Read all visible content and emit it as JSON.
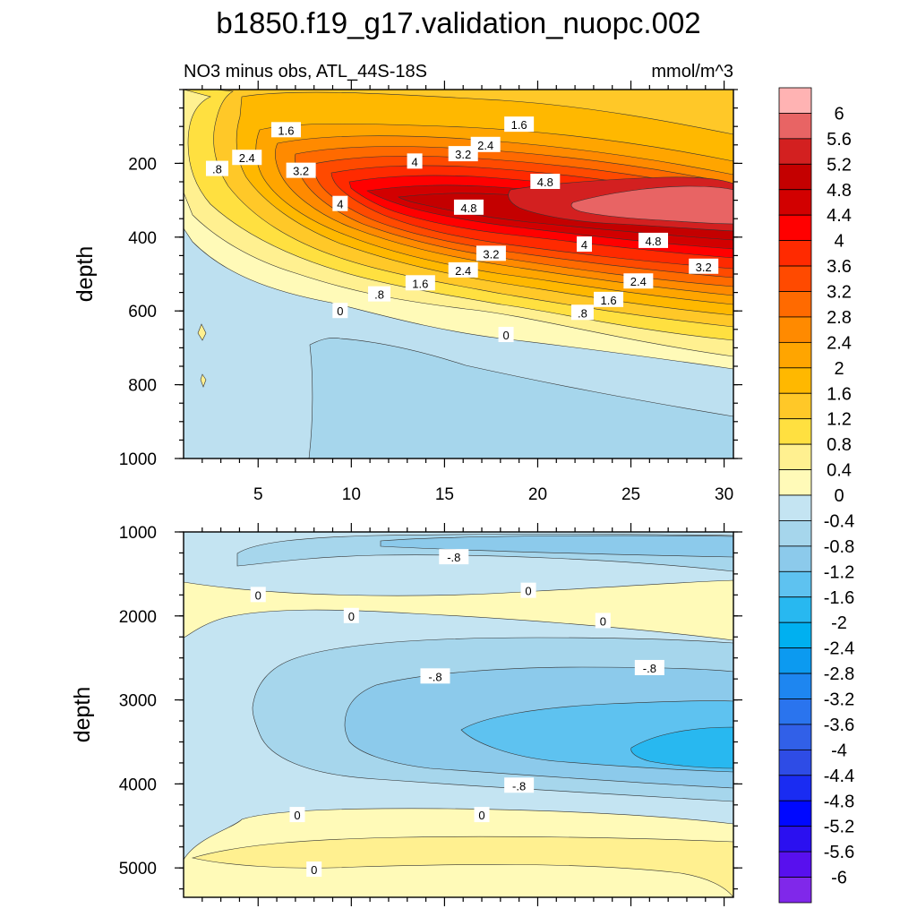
{
  "title": "b1850.f19_g17.validation_nuopc.002",
  "subtitle": "NO3 minus obs, ATL_44S-18S",
  "units": "mmol/m^3",
  "chart_data": [
    {
      "type": "heatmap",
      "panel": "upper",
      "ylabel": "depth",
      "xlabel": "",
      "xlim": [
        1,
        30.5
      ],
      "ylim": [
        1000,
        0
      ],
      "xticks": [
        "5",
        "10",
        "15",
        "20",
        "25",
        "30"
      ],
      "yticks": [
        "200",
        "400",
        "600",
        "800",
        "1000"
      ],
      "contour_labels": [
        {
          "x": 6.5,
          "y": 110,
          "text": "1.6"
        },
        {
          "x": 19,
          "y": 95,
          "text": "1.6"
        },
        {
          "x": 17.2,
          "y": 150,
          "text": "2.4"
        },
        {
          "x": 4.4,
          "y": 185,
          "text": "2.4"
        },
        {
          "x": 16,
          "y": 175,
          "text": "3.2"
        },
        {
          "x": 13.4,
          "y": 195,
          "text": "4"
        },
        {
          "x": 7.3,
          "y": 220,
          "text": "3.2"
        },
        {
          "x": 2.8,
          "y": 215,
          "text": ".8"
        },
        {
          "x": 20.4,
          "y": 250,
          "text": "4.8"
        },
        {
          "x": 9.4,
          "y": 310,
          "text": "4"
        },
        {
          "x": 16.3,
          "y": 320,
          "text": "4.8"
        },
        {
          "x": 26.2,
          "y": 410,
          "text": "4.8"
        },
        {
          "x": 22.5,
          "y": 420,
          "text": "4"
        },
        {
          "x": 17.5,
          "y": 445,
          "text": "3.2"
        },
        {
          "x": 28.9,
          "y": 480,
          "text": "3.2"
        },
        {
          "x": 16,
          "y": 490,
          "text": "2.4"
        },
        {
          "x": 13.7,
          "y": 525,
          "text": "1.6"
        },
        {
          "x": 25.4,
          "y": 520,
          "text": "2.4"
        },
        {
          "x": 11.5,
          "y": 555,
          "text": ".8"
        },
        {
          "x": 23.8,
          "y": 570,
          "text": "1.6"
        },
        {
          "x": 9.4,
          "y": 600,
          "text": "0"
        },
        {
          "x": 22.4,
          "y": 605,
          "text": ".8"
        },
        {
          "x": 18.3,
          "y": 665,
          "text": "0"
        }
      ]
    },
    {
      "type": "heatmap",
      "panel": "lower",
      "ylabel": "depth",
      "xlabel": "",
      "xlim": [
        1,
        30.5
      ],
      "ylim": [
        5350,
        1000
      ],
      "yticks": [
        "1000",
        "2000",
        "3000",
        "4000",
        "5000"
      ],
      "contour_labels": [
        {
          "x": 15.5,
          "y": 1300,
          "text": "-.8"
        },
        {
          "x": 5,
          "y": 1750,
          "text": "0"
        },
        {
          "x": 19.5,
          "y": 1700,
          "text": "0"
        },
        {
          "x": 10,
          "y": 2000,
          "text": "0"
        },
        {
          "x": 23.5,
          "y": 2060,
          "text": "0"
        },
        {
          "x": 14.5,
          "y": 2720,
          "text": "-.8"
        },
        {
          "x": 26,
          "y": 2620,
          "text": "-.8"
        },
        {
          "x": 19,
          "y": 4020,
          "text": "-.8"
        },
        {
          "x": 7.1,
          "y": 4370,
          "text": "0"
        },
        {
          "x": 17,
          "y": 4370,
          "text": "0"
        },
        {
          "x": 8,
          "y": 5020,
          "text": "0"
        }
      ]
    }
  ],
  "colorbar": {
    "labels": [
      "6",
      "5.6",
      "5.2",
      "4.8",
      "4.4",
      "4",
      "3.6",
      "3.2",
      "2.8",
      "2.4",
      "2",
      "1.6",
      "1.2",
      "0.8",
      "0.4",
      "0",
      "-0.4",
      "-0.8",
      "-1.2",
      "-1.6",
      "-2",
      "-2.4",
      "-2.8",
      "-3.2",
      "-3.6",
      "-4",
      "-4.4",
      "-4.8",
      "-5.2",
      "-5.6",
      "-6"
    ],
    "colors": [
      "#ffb3b3",
      "#e86464",
      "#d32020",
      "#c40000",
      "#d20000",
      "#ff0000",
      "#ff2a00",
      "#ff4a00",
      "#ff6a00",
      "#ff8a00",
      "#ffa500",
      "#ffb800",
      "#ffc828",
      "#ffe040",
      "#fff090",
      "#fffab8",
      "#c4e4f2",
      "#a6d6ec",
      "#8ccaeb",
      "#5ec2f0",
      "#28b8f0",
      "#00b0f0",
      "#0c9af0",
      "#1e86f0",
      "#2a74ee",
      "#3160e8",
      "#2e4ce6",
      "#1a2cf2",
      "#0008ff",
      "#2b10f0",
      "#5810ee",
      "#8028ea"
    ]
  }
}
